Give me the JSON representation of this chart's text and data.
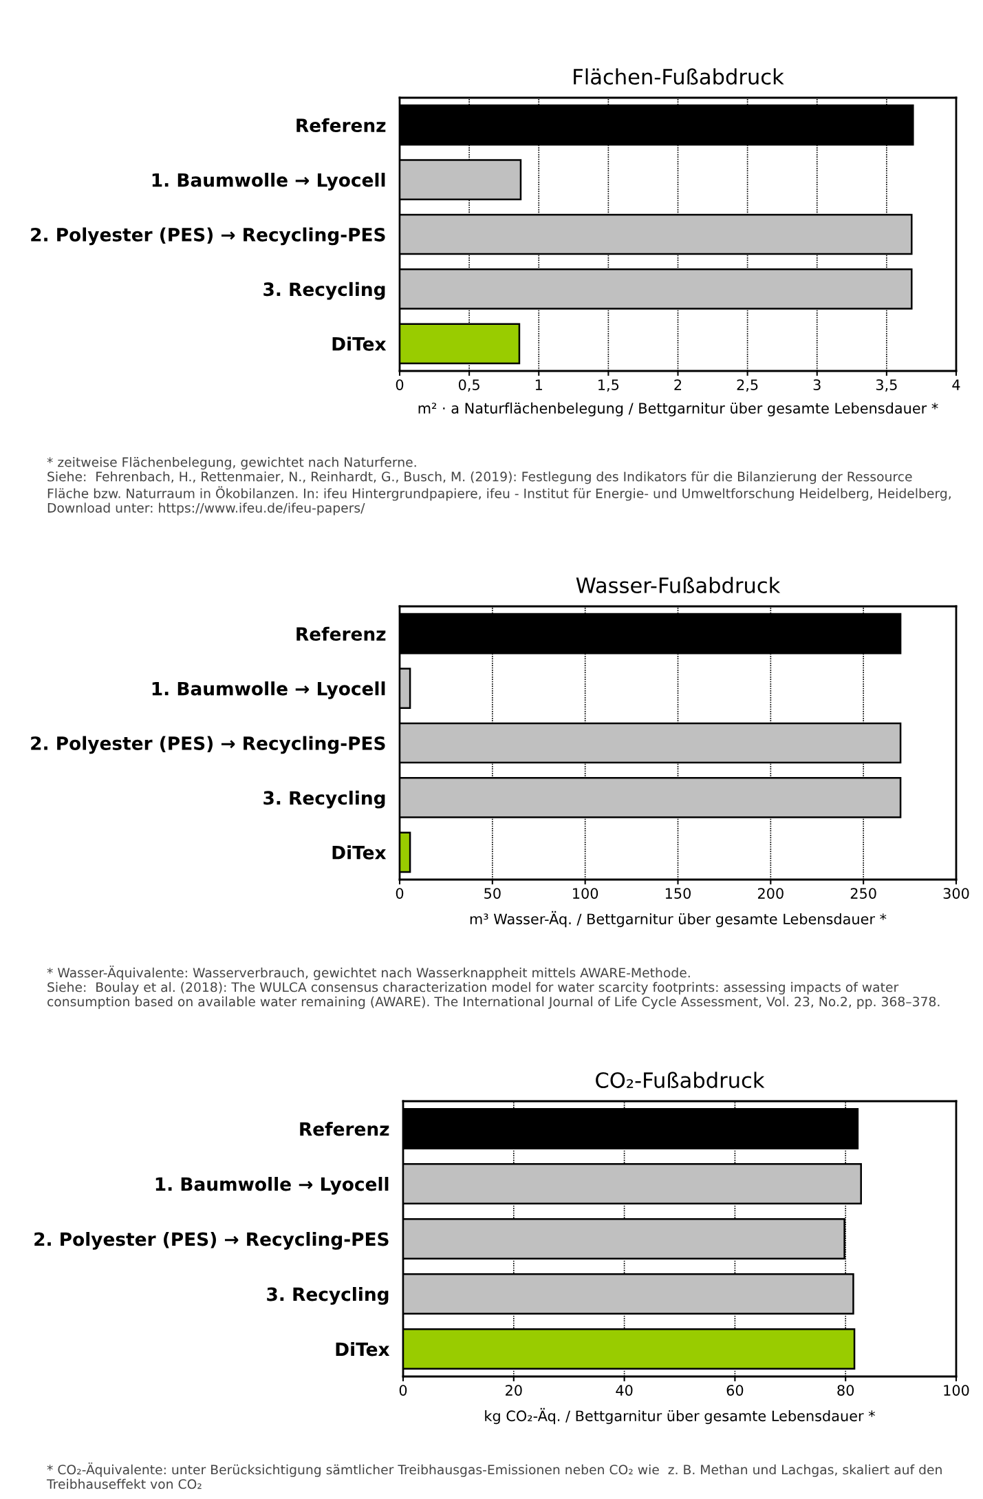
{
  "chart_data": [
    {
      "type": "bar",
      "orientation": "horizontal",
      "title": "Flächen-Fußabdruck",
      "xlabel": "m² · a Naturflächenbelegung / Bettgarnitur über gesamte Lebensdauer *",
      "categories": [
        "Referenz",
        "1. Baumwolle → Lyocell",
        "2. Polyester (PES) → Recycling-PES",
        "3. Recycling",
        "DiTex"
      ],
      "values": [
        3.69,
        0.87,
        3.68,
        3.68,
        0.86
      ],
      "colors": [
        "#000000",
        "#c0c0c0",
        "#c0c0c0",
        "#c0c0c0",
        "#99cc00"
      ],
      "xlim": [
        0,
        4
      ],
      "xticks": [
        0,
        {
          "value": 0.5,
          "label": "0,5"
        },
        1,
        {
          "value": 1.5,
          "label": "1,5"
        },
        2,
        {
          "value": 2.5,
          "label": "2,5"
        },
        3,
        {
          "value": 3.5,
          "label": "3,5"
        },
        4
      ],
      "grid": "x",
      "annotations": [
        "* zeitweise Flächenbelegung, gewichtet nach Naturferne.\nSiehe:  Fehrenbach, H., Rettenmaier, N., Reinhardt, G., Busch, M. (2019): Festlegung des Indikators für die Bilanzierung der Ressource\nFläche bzw. Naturraum in Ökobilanzen. In: ifeu Hintergrundpapiere, ifeu - Institut für Energie- und Umweltforschung Heidelberg, Heidelberg,\nDownload unter: https://www.ifeu.de/ifeu-papers/"
      ]
    },
    {
      "type": "bar",
      "orientation": "horizontal",
      "title": "Wasser-Fußabdruck",
      "xlabel": "m³ Wasser-Äq. / Bettgarnitur über gesamte Lebensdauer *",
      "categories": [
        "Referenz",
        "1. Baumwolle → Lyocell",
        "2. Polyester (PES) → Recycling-PES",
        "3. Recycling",
        "DiTex"
      ],
      "values": [
        270,
        5.6,
        270,
        270,
        5.6
      ],
      "colors": [
        "#000000",
        "#c0c0c0",
        "#c0c0c0",
        "#c0c0c0",
        "#99cc00"
      ],
      "xlim": [
        0,
        300
      ],
      "xticks": [
        0,
        50,
        100,
        150,
        200,
        250,
        300
      ],
      "grid": "x",
      "annotations": [
        "* Wasser-Äquivalente: Wasserverbrauch, gewichtet nach Wasserknappheit mittels AWARE-Methode.\nSiehe:  Boulay et al. (2018): The WULCA consensus characterization model for water scarcity footprints: assessing impacts of water\nconsumption based on available water remaining (AWARE). The International Journal of Life Cycle Assessment, Vol. 23, No.2, pp. 368–378."
      ]
    },
    {
      "type": "bar",
      "orientation": "horizontal",
      "title": "CO₂-Fußabdruck",
      "xlabel": "kg CO₂-Äq. / Bettgarnitur über gesamte Lebensdauer *",
      "categories": [
        "Referenz",
        "1. Baumwolle → Lyocell",
        "2. Polyester (PES) → Recycling-PES",
        "3. Recycling",
        "DiTex"
      ],
      "values": [
        82.2,
        82.8,
        79.8,
        81.4,
        81.6
      ],
      "colors": [
        "#000000",
        "#c0c0c0",
        "#c0c0c0",
        "#c0c0c0",
        "#99cc00"
      ],
      "xlim": [
        0,
        100
      ],
      "xticks": [
        0,
        20,
        40,
        60,
        80,
        100
      ],
      "grid": "x",
      "annotations": [
        "* CO₂-Äquivalente: unter Berücksichtigung sämtlicher Treibhausgas-Emissionen neben CO₂ wie  z. B. Methan und Lachgas, skaliert auf den\nTreibhauseffekt von CO₂"
      ]
    }
  ]
}
